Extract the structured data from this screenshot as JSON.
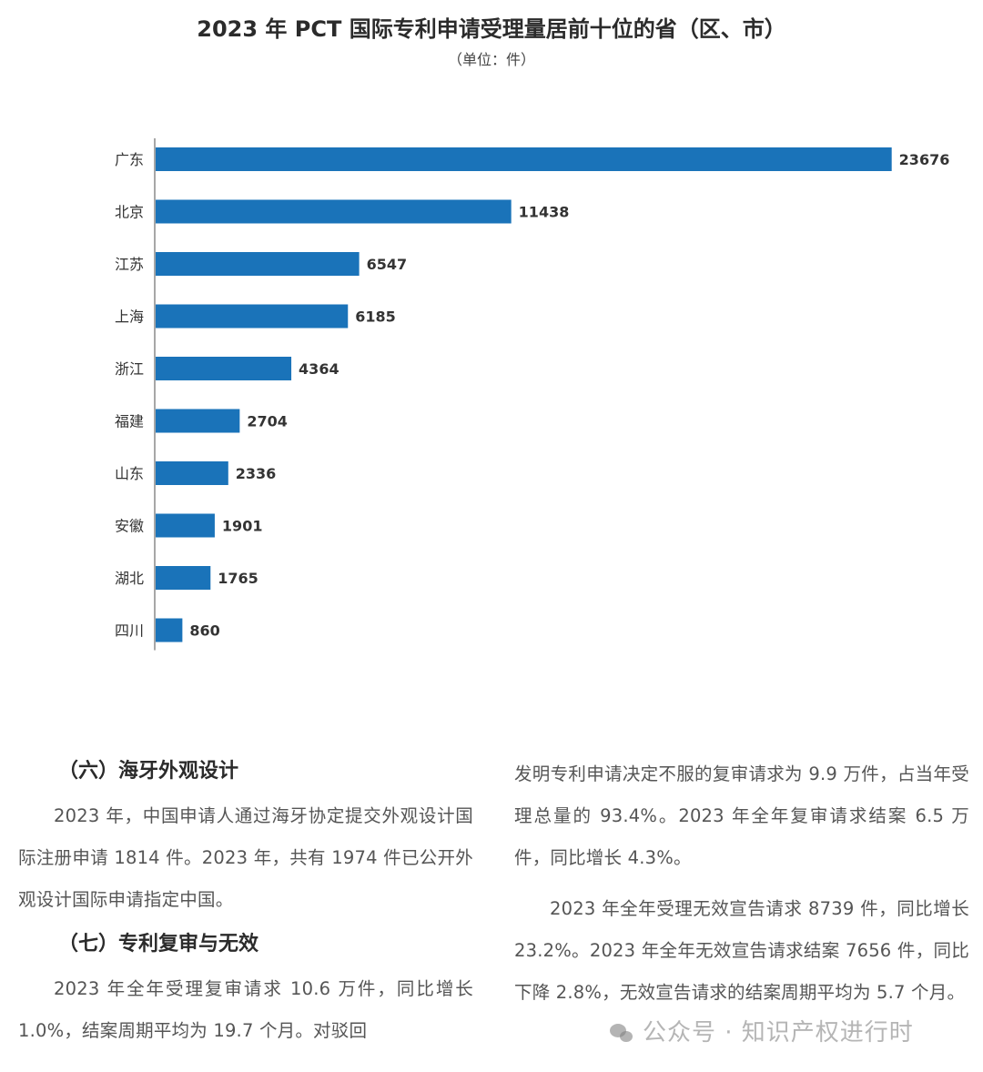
{
  "chart_data": {
    "type": "bar",
    "orientation": "horizontal",
    "title": "2023 年 PCT 国际专利申请受理量居前十位的省（区、市）",
    "subtitle": "（单位：件）",
    "categories": [
      "广东",
      "北京",
      "江苏",
      "上海",
      "浙江",
      "福建",
      "山东",
      "安徽",
      "湖北",
      "四川"
    ],
    "values": [
      23676,
      11438,
      6547,
      6185,
      4364,
      2704,
      2336,
      1901,
      1765,
      860
    ],
    "xlim": [
      0,
      24300
    ],
    "grid": false,
    "legend": "none",
    "bar_color": "#1a73b9",
    "axis_color": "#8a8a8a"
  },
  "article": {
    "section6_heading": "（六）海牙外观设计",
    "section6_para": "2023 年，中国申请人通过海牙协定提交外观设计国际注册申请 1814 件。2023 年，共有 1974 件已公开外观设计国际申请指定中国。",
    "section7_heading": "（七）专利复审与无效",
    "section7_para": "2023 年全年受理复审请求 10.6 万件，同比增长 1.0%，结案周期平均为 19.7 个月。对驳回",
    "right_para1": "发明专利申请决定不服的复审请求为 9.9 万件，占当年受理总量的 93.4%。2023 年全年复审请求结案 6.5 万件，同比增长 4.3%。",
    "right_para2": "2023 年全年受理无效宣告请求 8739 件，同比增长 23.2%。2023 年全年无效宣告请求结案 7656 件，同比下降 2.8%，无效宣告请求的结案周期平均为 5.7 个月。"
  },
  "watermark": {
    "icon": "wechat-icon",
    "text": "公众号 · 知识产权进行时"
  }
}
